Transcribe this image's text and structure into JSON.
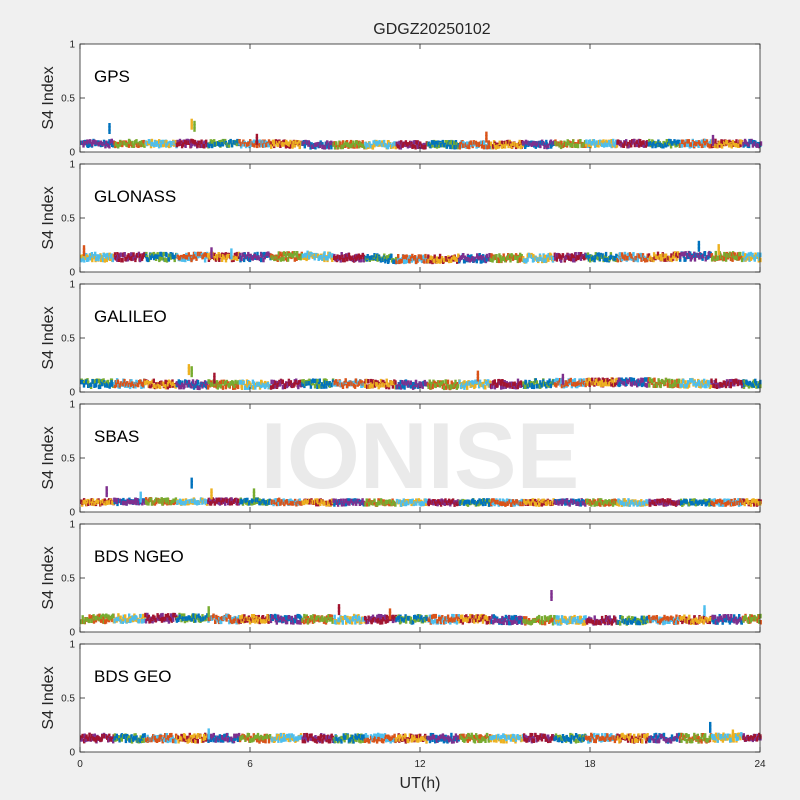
{
  "figure": {
    "title": "GDGZ20250102",
    "xlabel": "UT(h)",
    "watermark": "IONISE"
  },
  "colors": {
    "background": "#f0f0f0",
    "axes": "#ffffff",
    "series": [
      "#0072BD",
      "#D95319",
      "#EDB120",
      "#7E2F8E",
      "#77AC30",
      "#4DBEEE",
      "#A2142F"
    ],
    "watermark": "#e6e6e6"
  },
  "chart_data": [
    {
      "type": "scatter",
      "panel": "GPS",
      "ylabel": "S4 Index",
      "xlim": [
        0,
        24
      ],
      "ylim": [
        0,
        1
      ],
      "xticks": [
        0,
        6,
        12,
        18,
        24
      ],
      "yticks": [
        0,
        0.5,
        1
      ],
      "show_xticklabels": false,
      "baseline": [
        0.08,
        0.08,
        0.08,
        0.08,
        0.07,
        0.07,
        0.07,
        0.07,
        0.07,
        0.08,
        0.08,
        0.08,
        0.08
      ],
      "spread": 0.025,
      "spikes": [
        [
          1.0,
          0.25
        ],
        [
          3.9,
          0.29
        ],
        [
          4.0,
          0.27
        ],
        [
          6.2,
          0.15
        ],
        [
          14.3,
          0.17
        ],
        [
          22.3,
          0.14
        ]
      ]
    },
    {
      "type": "scatter",
      "panel": "GLONASS",
      "ylabel": "S4 Index",
      "xlim": [
        0,
        24
      ],
      "ylim": [
        0,
        1
      ],
      "xticks": [
        0,
        6,
        12,
        18,
        24
      ],
      "yticks": [
        0,
        0.5,
        1
      ],
      "show_xticklabels": false,
      "baseline": [
        0.14,
        0.14,
        0.14,
        0.14,
        0.15,
        0.13,
        0.12,
        0.13,
        0.13,
        0.14,
        0.14,
        0.15,
        0.14
      ],
      "spread": 0.03,
      "spikes": [
        [
          0.1,
          0.23
        ],
        [
          4.6,
          0.21
        ],
        [
          5.3,
          0.2
        ],
        [
          21.8,
          0.27
        ],
        [
          22.5,
          0.24
        ]
      ]
    },
    {
      "type": "scatter",
      "panel": "GALILEO",
      "ylabel": "S4 Index",
      "xlim": [
        0,
        24
      ],
      "ylim": [
        0,
        1
      ],
      "xticks": [
        0,
        6,
        12,
        18,
        24
      ],
      "yticks": [
        0,
        0.5,
        1
      ],
      "show_xticklabels": false,
      "baseline": [
        0.08,
        0.08,
        0.07,
        0.07,
        0.08,
        0.08,
        0.07,
        0.07,
        0.08,
        0.09,
        0.09,
        0.08,
        0.08
      ],
      "spread": 0.03,
      "spikes": [
        [
          3.8,
          0.24
        ],
        [
          3.9,
          0.22
        ],
        [
          4.7,
          0.16
        ],
        [
          14.0,
          0.18
        ],
        [
          17.0,
          0.15
        ]
      ]
    },
    {
      "type": "scatter",
      "panel": "SBAS",
      "ylabel": "S4 Index",
      "xlim": [
        0,
        24
      ],
      "ylim": [
        0,
        1
      ],
      "xticks": [
        0,
        6,
        12,
        18,
        24
      ],
      "yticks": [
        0,
        0.5,
        1
      ],
      "show_xticklabels": false,
      "baseline": [
        0.09,
        0.1,
        0.1,
        0.1,
        0.09,
        0.09,
        0.09,
        0.09,
        0.09,
        0.09,
        0.09,
        0.09,
        0.09
      ],
      "spread": 0.02,
      "spikes": [
        [
          0.9,
          0.22
        ],
        [
          2.1,
          0.17
        ],
        [
          3.9,
          0.3
        ],
        [
          4.6,
          0.2
        ],
        [
          6.1,
          0.2
        ]
      ]
    },
    {
      "type": "scatter",
      "panel": "BDS NGEO",
      "ylabel": "S4 Index",
      "xlim": [
        0,
        24
      ],
      "ylim": [
        0,
        1
      ],
      "xticks": [
        0,
        6,
        12,
        18,
        24
      ],
      "yticks": [
        0,
        0.5,
        1
      ],
      "show_xticklabels": false,
      "baseline": [
        0.12,
        0.13,
        0.13,
        0.12,
        0.12,
        0.12,
        0.12,
        0.12,
        0.11,
        0.11,
        0.11,
        0.12,
        0.12
      ],
      "spread": 0.03,
      "spikes": [
        [
          4.5,
          0.22
        ],
        [
          9.1,
          0.24
        ],
        [
          10.9,
          0.2
        ],
        [
          16.6,
          0.37
        ],
        [
          22.0,
          0.23
        ]
      ]
    },
    {
      "type": "scatter",
      "panel": "BDS GEO",
      "ylabel": "S4 Index",
      "xlim": [
        0,
        24
      ],
      "ylim": [
        0,
        1
      ],
      "xticks": [
        0,
        6,
        12,
        18,
        24
      ],
      "yticks": [
        0,
        0.5,
        1
      ],
      "show_xticklabels": true,
      "baseline": [
        0.13,
        0.13,
        0.13,
        0.13,
        0.13,
        0.13,
        0.13,
        0.13,
        0.13,
        0.13,
        0.13,
        0.13,
        0.14
      ],
      "spread": 0.03,
      "spikes": [
        [
          4.5,
          0.2
        ],
        [
          22.2,
          0.26
        ],
        [
          23.0,
          0.19
        ]
      ]
    }
  ]
}
